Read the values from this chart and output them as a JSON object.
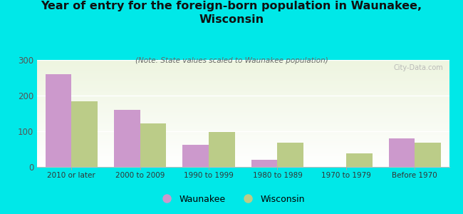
{
  "title": "Year of entry for the foreign-born population in Waunakee,\nWisconsin",
  "subtitle": "(Note: State values scaled to Waunakee population)",
  "categories": [
    "2010 or later",
    "2000 to 2009",
    "1990 to 1999",
    "1980 to 1989",
    "1970 to 1979",
    "Before 1970"
  ],
  "waunakee": [
    260,
    160,
    62,
    20,
    0,
    80
  ],
  "wisconsin": [
    185,
    122,
    98,
    68,
    38,
    68
  ],
  "waunakee_color": "#cc99cc",
  "wisconsin_color": "#bbcc88",
  "background_color": "#00e8e8",
  "plot_bg_top": "#eef5e0",
  "plot_bg_bottom": "#ffffff",
  "ylim": [
    0,
    300
  ],
  "yticks": [
    0,
    100,
    200,
    300
  ],
  "bar_width": 0.38,
  "watermark": "City-Data.com",
  "legend_waunakee": "Waunakee",
  "legend_wisconsin": "Wisconsin"
}
